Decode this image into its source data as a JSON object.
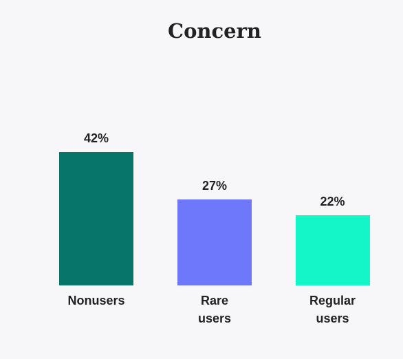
{
  "chart_data": {
    "type": "bar",
    "title": "Concern",
    "categories": [
      "Nonusers",
      "Rare users",
      "Regular users"
    ],
    "values": [
      42,
      27,
      22
    ],
    "value_labels": [
      "42%",
      "27%",
      "22%"
    ],
    "colors": [
      "#08756a",
      "#6e78fb",
      "#14f5c8"
    ]
  }
}
